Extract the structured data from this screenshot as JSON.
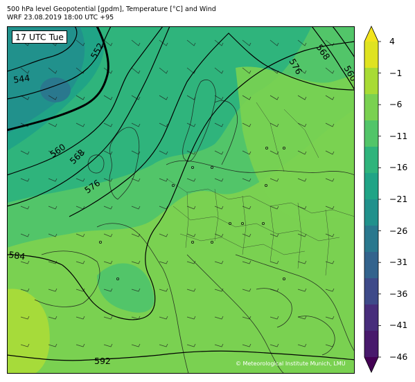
{
  "title": {
    "line1": "500 hPa level Geopotential [gpdm], Temperature [°C] and Wind",
    "line2": "WRF 23.08.2019 18:00 UTC +95"
  },
  "time_label": "17 UTC Tue",
  "credit": "© Meteorological Institute Munich, LMU",
  "colorbar": {
    "ticks": [
      "4",
      "−1",
      "−6",
      "−11",
      "−16",
      "−21",
      "−26",
      "−31",
      "−36",
      "−41",
      "−46"
    ],
    "colors": [
      "#f2e41d",
      "#dfe321",
      "#a8db35",
      "#7ad151",
      "#52c569",
      "#2fb47c",
      "#20a486",
      "#21918c",
      "#2a788e",
      "#33638d",
      "#3e4a89",
      "#472d7b",
      "#481a6c",
      "#440154"
    ]
  },
  "contours": {
    "labels": [
      "544",
      "552",
      "560",
      "568",
      "576",
      "584",
      "592",
      "576",
      "568",
      "560"
    ]
  },
  "map": {
    "region": "Europe",
    "fill_colors": {
      "warm": "#a6db3a",
      "mild": "#7ad151",
      "mid": "#52c569",
      "cool": "#2fb47c",
      "cold": "#21918c",
      "colder": "#2a788e",
      "coldest": "#3e6a99"
    }
  }
}
